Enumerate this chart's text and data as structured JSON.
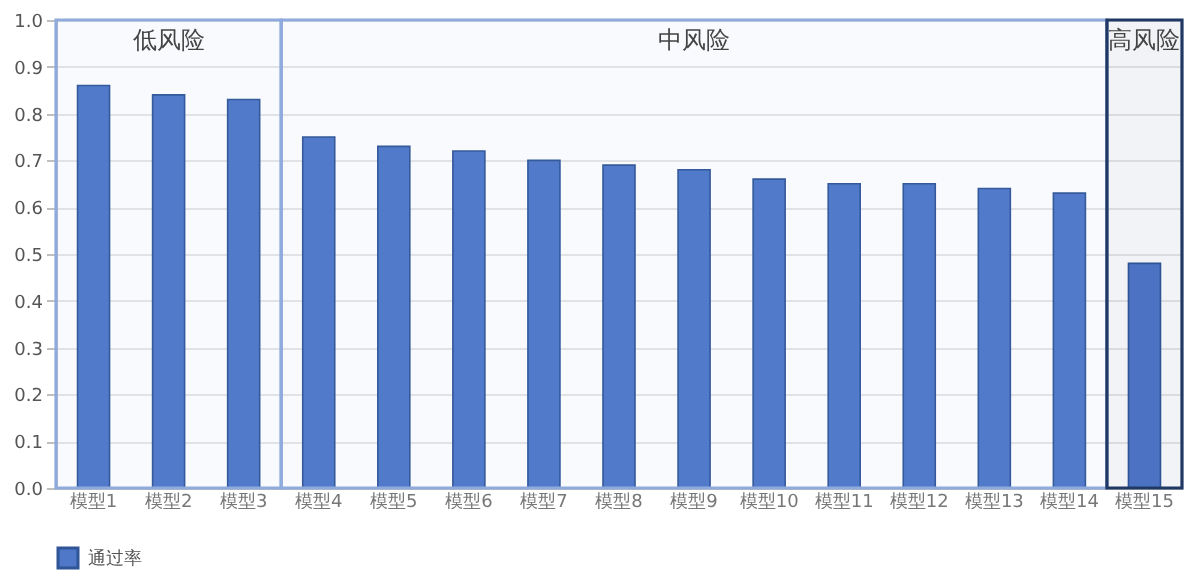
{
  "chart_data": {
    "type": "bar",
    "categories": [
      "模型1",
      "模型2",
      "模型3",
      "模型4",
      "模型5",
      "模型6",
      "模型7",
      "模型8",
      "模型9",
      "模型10",
      "模型11",
      "模型12",
      "模型13",
      "模型14",
      "模型15"
    ],
    "series": [
      {
        "name": "通过率",
        "color": "#4f78c9",
        "values": [
          0.86,
          0.84,
          0.83,
          0.75,
          0.73,
          0.72,
          0.7,
          0.69,
          0.68,
          0.66,
          0.65,
          0.65,
          0.64,
          0.63,
          0.48
        ]
      }
    ],
    "ylim": [
      0,
      1
    ],
    "yticks": [
      {
        "value": 0,
        "label": "0.0"
      },
      {
        "value": 0.1,
        "label": "0.1"
      },
      {
        "value": 0.2,
        "label": "0.2"
      },
      {
        "value": 0.3,
        "label": "0.3"
      },
      {
        "value": 0.4,
        "label": "0.4"
      },
      {
        "value": 0.5,
        "label": "0.5"
      },
      {
        "value": 0.6,
        "label": "0.6"
      },
      {
        "value": 0.7,
        "label": "0.7"
      },
      {
        "value": 0.8,
        "label": "0.8"
      },
      {
        "value": 0.9,
        "label": "0.9"
      },
      {
        "value": 1,
        "label": "1.0"
      }
    ],
    "bands": [
      {
        "axis": "x",
        "from": "模型1",
        "to": "模型3",
        "label": "低风险",
        "color": "#8faadc"
      },
      {
        "axis": "x",
        "from": "模型4",
        "to": "模型14",
        "label": "中风险",
        "color": "#8faadc"
      },
      {
        "axis": "x",
        "from": "模型15",
        "to": "模型15",
        "label": "高风险",
        "color": "#203864"
      }
    ],
    "grid": "y",
    "legend": "bottom"
  }
}
